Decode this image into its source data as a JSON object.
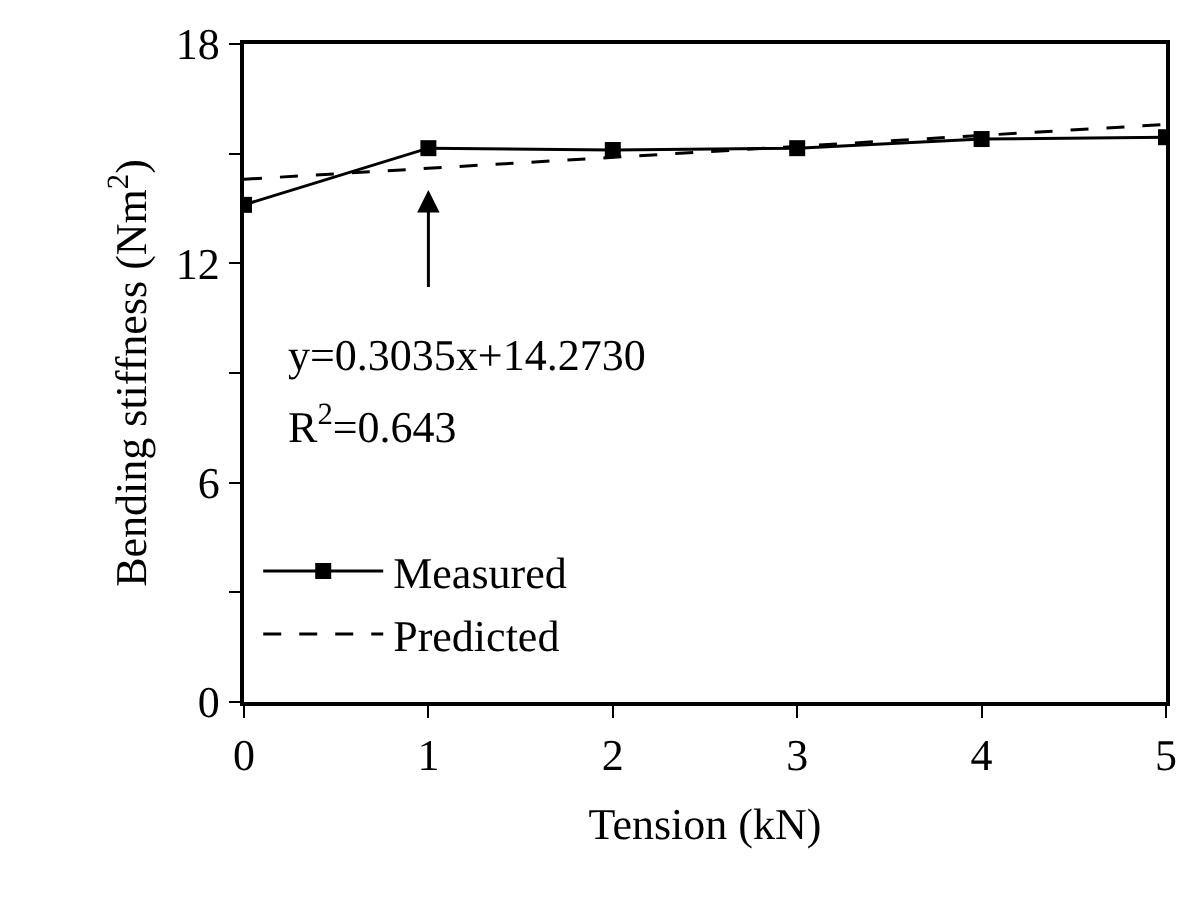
{
  "chart_data": {
    "type": "line",
    "xlabel": "Tension (kN)",
    "ylabel": "Bending stiffness (Nm$^{2}$)",
    "x": [
      0,
      1,
      2,
      3,
      4,
      5
    ],
    "series": [
      {
        "name": "Measured",
        "color": "#000000",
        "values": [
          13.6,
          15.15,
          15.1,
          15.15,
          15.4,
          15.45
        ],
        "marker": "square",
        "line_style": "solid"
      },
      {
        "name": "Predicted",
        "color": "#000000",
        "type": "line",
        "x": [
          0,
          5
        ],
        "values": [
          14.3,
          15.8
        ],
        "marker": "none",
        "line_style": "dashed"
      }
    ],
    "xlim": [
      0,
      5
    ],
    "xticks": [
      0,
      1,
      2,
      3,
      4,
      5
    ],
    "ylim": [
      0,
      18
    ],
    "yticks": [
      0,
      {
        "value": 3,
        "label": null
      },
      6,
      {
        "value": 9,
        "label": null
      },
      12,
      {
        "value": 15,
        "label": null
      },
      18
    ],
    "legend": "left",
    "annotations": [
      "y=0.3035x+14.2730",
      "R$^{2}$=0.643"
    ]
  }
}
